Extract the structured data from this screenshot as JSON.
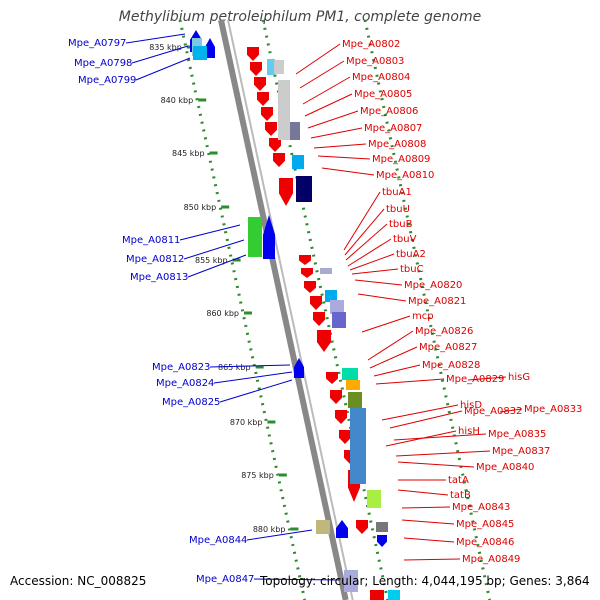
{
  "title": "Methylibium petroleiphilum PM1, complete genome",
  "footer": {
    "accession": "Accession: NC_008825",
    "topology": "Topology: circular; Length: 4,044,195 bp; Genes: 3,864"
  },
  "colors": {
    "backbone": "#888888",
    "scale_dots": "#2e8b2e",
    "left_labels": "#0000cc",
    "right_labels": "#dd0000",
    "forward_genes": "#0000ee",
    "reverse_genes": "#ee0000"
  },
  "scale_ticks": [
    "835 kbp",
    "840 kbp",
    "845 kbp",
    "850 kbp",
    "855 kbp",
    "860 kbp",
    "865 kbp",
    "870 kbp",
    "875 kbp",
    "880 kbp"
  ],
  "left_labels": [
    "Mpe_A0797",
    "Mpe_A0798",
    "Mpe_A0799",
    "Mpe_A0811",
    "Mpe_A0812",
    "Mpe_A0813",
    "Mpe_A0823",
    "Mpe_A0824",
    "Mpe_A0825",
    "Mpe_A0844",
    "Mpe_A0847"
  ],
  "right_labels": [
    "Mpe_A0802",
    "Mpe_A0803",
    "Mpe_A0804",
    "Mpe_A0805",
    "Mpe_A0806",
    "Mpe_A0807",
    "Mpe_A0808",
    "Mpe_A0809",
    "Mpe_A0810",
    "tbuA1",
    "tbuU",
    "tbuB",
    "tbuV",
    "tbuA2",
    "tbuC",
    "Mpe_A0820",
    "Mpe_A0821",
    "mcp",
    "Mpe_A0826",
    "Mpe_A0827",
    "Mpe_A0828",
    "Mpe_A0829",
    "hisG",
    "hisD",
    "Mpe_A0832",
    "Mpe_A0833",
    "hisH",
    "Mpe_A0835",
    "Mpe_A0837",
    "Mpe_A0840",
    "tatA",
    "tatB",
    "Mpe_A0843",
    "Mpe_A0845",
    "Mpe_A0846",
    "Mpe_A0849"
  ]
}
